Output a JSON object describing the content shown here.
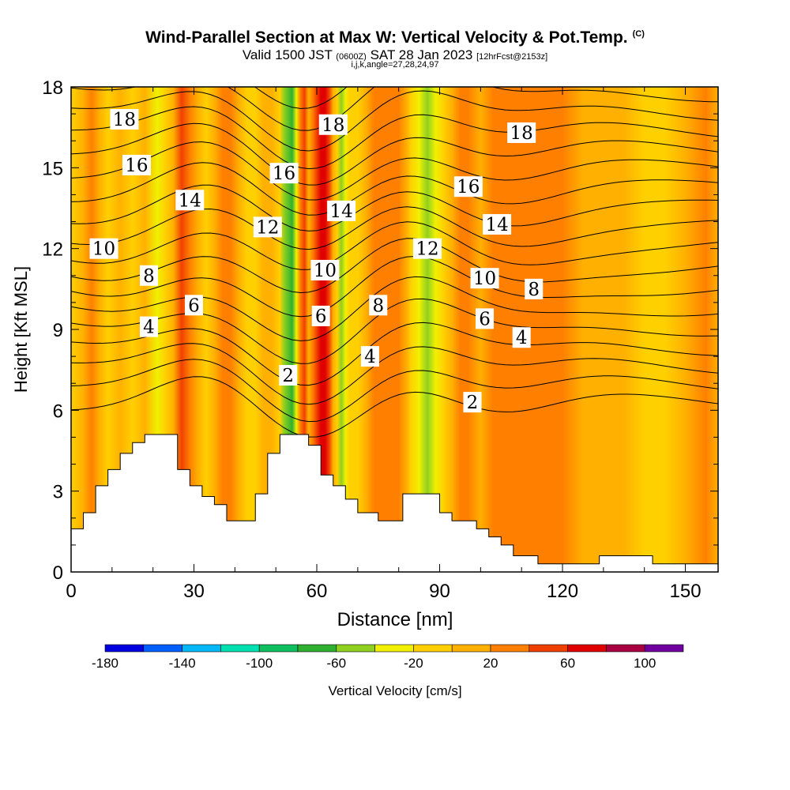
{
  "title": {
    "main": "Wind-Parallel Section at Max W: Vertical Velocity & Pot.Temp.",
    "copyright": "(C)",
    "valid_prefix": "Valid 1500 JST",
    "valid_utc": "(0600Z)",
    "valid_date": "SAT 28 Jan 2023",
    "forecast": "[12hrFcst@2153z]",
    "grid_info": "i,j,k,angle=27,28,24,97"
  },
  "chart_data": {
    "type": "heatmap",
    "xlabel": "Distance [nm]",
    "ylabel": "Height [Kft MSL]",
    "xlim": [
      0,
      158
    ],
    "ylim": [
      0,
      18
    ],
    "x_ticks": [
      "0",
      "30",
      "60",
      "90",
      "120",
      "150"
    ],
    "y_ticks": [
      "0",
      "3",
      "6",
      "9",
      "12",
      "15",
      "18"
    ],
    "colorbar": {
      "label": "Vertical Velocity [cm/s]",
      "tick_labels": [
        "-180",
        "-140",
        "-100",
        "-60",
        "-20",
        "20",
        "60",
        "100"
      ],
      "tick_values": [
        -180,
        -140,
        -100,
        -60,
        -20,
        20,
        60,
        100
      ],
      "bounds": [
        -180,
        120
      ],
      "colors": [
        "#0000e0",
        "#0060ff",
        "#00b8f8",
        "#00e0b0",
        "#10c060",
        "#30b030",
        "#90d020",
        "#f0f000",
        "#ffd000",
        "#ffb000",
        "#ff8000",
        "#f04000",
        "#e00000",
        "#a80040",
        "#7000a0"
      ]
    },
    "velocity_columns": [
      {
        "x": 0,
        "value": -20
      },
      {
        "x": 3,
        "value": 5
      },
      {
        "x": 5,
        "value": 25
      },
      {
        "x": 7,
        "value": 5
      },
      {
        "x": 9,
        "value": -15
      },
      {
        "x": 12,
        "value": 5
      },
      {
        "x": 15,
        "value": -5
      },
      {
        "x": 18,
        "value": 15
      },
      {
        "x": 21,
        "value": -35
      },
      {
        "x": 23,
        "value": -15
      },
      {
        "x": 25,
        "value": 15
      },
      {
        "x": 27,
        "value": 50
      },
      {
        "x": 29,
        "value": 35
      },
      {
        "x": 31,
        "value": 15
      },
      {
        "x": 33,
        "value": -10
      },
      {
        "x": 35,
        "value": 5
      },
      {
        "x": 37,
        "value": 25
      },
      {
        "x": 39,
        "value": 35
      },
      {
        "x": 41,
        "value": 10
      },
      {
        "x": 43,
        "value": -10
      },
      {
        "x": 45,
        "value": -5
      },
      {
        "x": 47,
        "value": 10
      },
      {
        "x": 49,
        "value": 15
      },
      {
        "x": 51,
        "value": -10
      },
      {
        "x": 52,
        "value": -50
      },
      {
        "x": 54,
        "value": -70
      },
      {
        "x": 55,
        "value": -40
      },
      {
        "x": 56,
        "value": 25
      },
      {
        "x": 57,
        "value": 45
      },
      {
        "x": 58,
        "value": 15
      },
      {
        "x": 59,
        "value": 20
      },
      {
        "x": 60,
        "value": 45
      },
      {
        "x": 61,
        "value": 70
      },
      {
        "x": 62,
        "value": 60
      },
      {
        "x": 63,
        "value": 40
      },
      {
        "x": 64,
        "value": 15
      },
      {
        "x": 65,
        "value": -15
      },
      {
        "x": 66,
        "value": -45
      },
      {
        "x": 67,
        "value": -30
      },
      {
        "x": 68,
        "value": -20
      },
      {
        "x": 70,
        "value": -5
      },
      {
        "x": 72,
        "value": 10
      },
      {
        "x": 74,
        "value": 20
      },
      {
        "x": 76,
        "value": 30
      },
      {
        "x": 78,
        "value": 35
      },
      {
        "x": 80,
        "value": 20
      },
      {
        "x": 82,
        "value": 5
      },
      {
        "x": 83,
        "value": -20
      },
      {
        "x": 85,
        "value": -35
      },
      {
        "x": 87,
        "value": -55
      },
      {
        "x": 89,
        "value": -25
      },
      {
        "x": 91,
        "value": -5
      },
      {
        "x": 93,
        "value": 15
      },
      {
        "x": 95,
        "value": 25
      },
      {
        "x": 97,
        "value": 20
      },
      {
        "x": 100,
        "value": 10
      },
      {
        "x": 103,
        "value": 20
      },
      {
        "x": 106,
        "value": 30
      },
      {
        "x": 110,
        "value": 30
      },
      {
        "x": 115,
        "value": 25
      },
      {
        "x": 120,
        "value": 20
      },
      {
        "x": 125,
        "value": 15
      },
      {
        "x": 130,
        "value": 10
      },
      {
        "x": 135,
        "value": 5
      },
      {
        "x": 140,
        "value": -5
      },
      {
        "x": 145,
        "value": -10
      },
      {
        "x": 150,
        "value": 5
      },
      {
        "x": 155,
        "value": 25
      },
      {
        "x": 158,
        "value": 15
      }
    ],
    "terrain": [
      {
        "x": 0,
        "y": 1.6
      },
      {
        "x": 3,
        "y": 2.2
      },
      {
        "x": 6,
        "y": 3.2
      },
      {
        "x": 9,
        "y": 3.8
      },
      {
        "x": 12,
        "y": 4.4
      },
      {
        "x": 15,
        "y": 4.8
      },
      {
        "x": 18,
        "y": 5.1
      },
      {
        "x": 26,
        "y": 3.8
      },
      {
        "x": 29,
        "y": 3.2
      },
      {
        "x": 32,
        "y": 2.8
      },
      {
        "x": 35,
        "y": 2.5
      },
      {
        "x": 38,
        "y": 1.9
      },
      {
        "x": 45,
        "y": 2.9
      },
      {
        "x": 48,
        "y": 4.4
      },
      {
        "x": 51,
        "y": 5.1
      },
      {
        "x": 58,
        "y": 4.7
      },
      {
        "x": 61,
        "y": 3.6
      },
      {
        "x": 64,
        "y": 3.2
      },
      {
        "x": 67,
        "y": 2.7
      },
      {
        "x": 70,
        "y": 2.2
      },
      {
        "x": 75,
        "y": 1.9
      },
      {
        "x": 81,
        "y": 2.9
      },
      {
        "x": 90,
        "y": 2.2
      },
      {
        "x": 93,
        "y": 1.9
      },
      {
        "x": 99,
        "y": 1.6
      },
      {
        "x": 102,
        "y": 1.3
      },
      {
        "x": 105,
        "y": 1.0
      },
      {
        "x": 108,
        "y": 0.6
      },
      {
        "x": 114,
        "y": 0.3
      },
      {
        "x": 129,
        "y": 0.6
      },
      {
        "x": 142,
        "y": 0.3
      },
      {
        "x": 158,
        "y": 0.3
      }
    ],
    "isotherm_labels": [
      {
        "text": "18",
        "x": 13,
        "y": 16.8
      },
      {
        "text": "16",
        "x": 16,
        "y": 15.1
      },
      {
        "text": "14",
        "x": 29,
        "y": 13.8
      },
      {
        "text": "10",
        "x": 8,
        "y": 12.0
      },
      {
        "text": "8",
        "x": 19,
        "y": 11.0
      },
      {
        "text": "6",
        "x": 30,
        "y": 9.9
      },
      {
        "text": "4",
        "x": 19,
        "y": 9.1
      },
      {
        "text": "16",
        "x": 52,
        "y": 14.8
      },
      {
        "text": "12",
        "x": 48,
        "y": 12.8
      },
      {
        "text": "18",
        "x": 64,
        "y": 16.6
      },
      {
        "text": "14",
        "x": 66,
        "y": 13.4
      },
      {
        "text": "10",
        "x": 62,
        "y": 11.2
      },
      {
        "text": "6",
        "x": 61,
        "y": 9.5
      },
      {
        "text": "2",
        "x": 53,
        "y": 7.3
      },
      {
        "text": "8",
        "x": 75,
        "y": 9.9
      },
      {
        "text": "4",
        "x": 73,
        "y": 8.0
      },
      {
        "text": "12",
        "x": 87,
        "y": 12.0
      },
      {
        "text": "16",
        "x": 97,
        "y": 14.3
      },
      {
        "text": "14",
        "x": 104,
        "y": 12.9
      },
      {
        "text": "10",
        "x": 101,
        "y": 10.9
      },
      {
        "text": "6",
        "x": 101,
        "y": 9.4
      },
      {
        "text": "2",
        "x": 98,
        "y": 6.3
      },
      {
        "text": "18",
        "x": 110,
        "y": 16.3
      },
      {
        "text": "8",
        "x": 113,
        "y": 10.5
      },
      {
        "text": "4",
        "x": 110,
        "y": 8.7
      }
    ],
    "isotherm_levels": [
      2,
      4,
      6,
      8,
      10,
      12,
      14,
      16,
      18
    ]
  }
}
